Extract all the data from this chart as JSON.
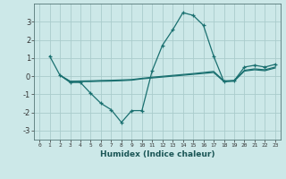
{
  "xlabel": "Humidex (Indice chaleur)",
  "background_color": "#cce8e8",
  "grid_color": "#aacccc",
  "line_color": "#1a7070",
  "xlim": [
    -0.5,
    23.5
  ],
  "ylim": [
    -3.5,
    4.0
  ],
  "yticks": [
    -3,
    -2,
    -1,
    0,
    1,
    2,
    3
  ],
  "xticks": [
    0,
    1,
    2,
    3,
    4,
    5,
    6,
    7,
    8,
    9,
    10,
    11,
    12,
    13,
    14,
    15,
    16,
    17,
    18,
    19,
    20,
    21,
    22,
    23
  ],
  "curve1_x": [
    1,
    2,
    3,
    4,
    5,
    6,
    7,
    8,
    9,
    10,
    11,
    12,
    13,
    14,
    15,
    16,
    17,
    18,
    19,
    20,
    21,
    22,
    23
  ],
  "curve1_y": [
    1.1,
    0.05,
    -0.35,
    -0.35,
    -0.95,
    -1.5,
    -1.85,
    -2.55,
    -1.9,
    -1.9,
    0.3,
    1.7,
    2.55,
    3.5,
    3.35,
    2.8,
    1.1,
    -0.3,
    -0.25,
    0.5,
    0.6,
    0.5,
    0.65
  ],
  "curve2_x": [
    2,
    3,
    4,
    5,
    6,
    7,
    8,
    9,
    10,
    11,
    12,
    13,
    14,
    15,
    16,
    17,
    18,
    19,
    20,
    21,
    22,
    23
  ],
  "curve2_y": [
    0.05,
    -0.3,
    -0.3,
    -0.3,
    -0.28,
    -0.27,
    -0.25,
    -0.22,
    -0.15,
    -0.1,
    -0.05,
    0.0,
    0.05,
    0.1,
    0.15,
    0.2,
    -0.3,
    -0.28,
    0.28,
    0.35,
    0.3,
    0.45
  ],
  "curve3_x": [
    2,
    3,
    4,
    5,
    6,
    7,
    8,
    9,
    10,
    11,
    12,
    13,
    14,
    15,
    16,
    17,
    18,
    19,
    20,
    21,
    22,
    23
  ],
  "curve3_y": [
    0.05,
    -0.28,
    -0.27,
    -0.26,
    -0.24,
    -0.23,
    -0.21,
    -0.19,
    -0.12,
    -0.06,
    -0.01,
    0.04,
    0.09,
    0.14,
    0.2,
    0.26,
    -0.26,
    -0.24,
    0.32,
    0.4,
    0.35,
    0.5
  ]
}
